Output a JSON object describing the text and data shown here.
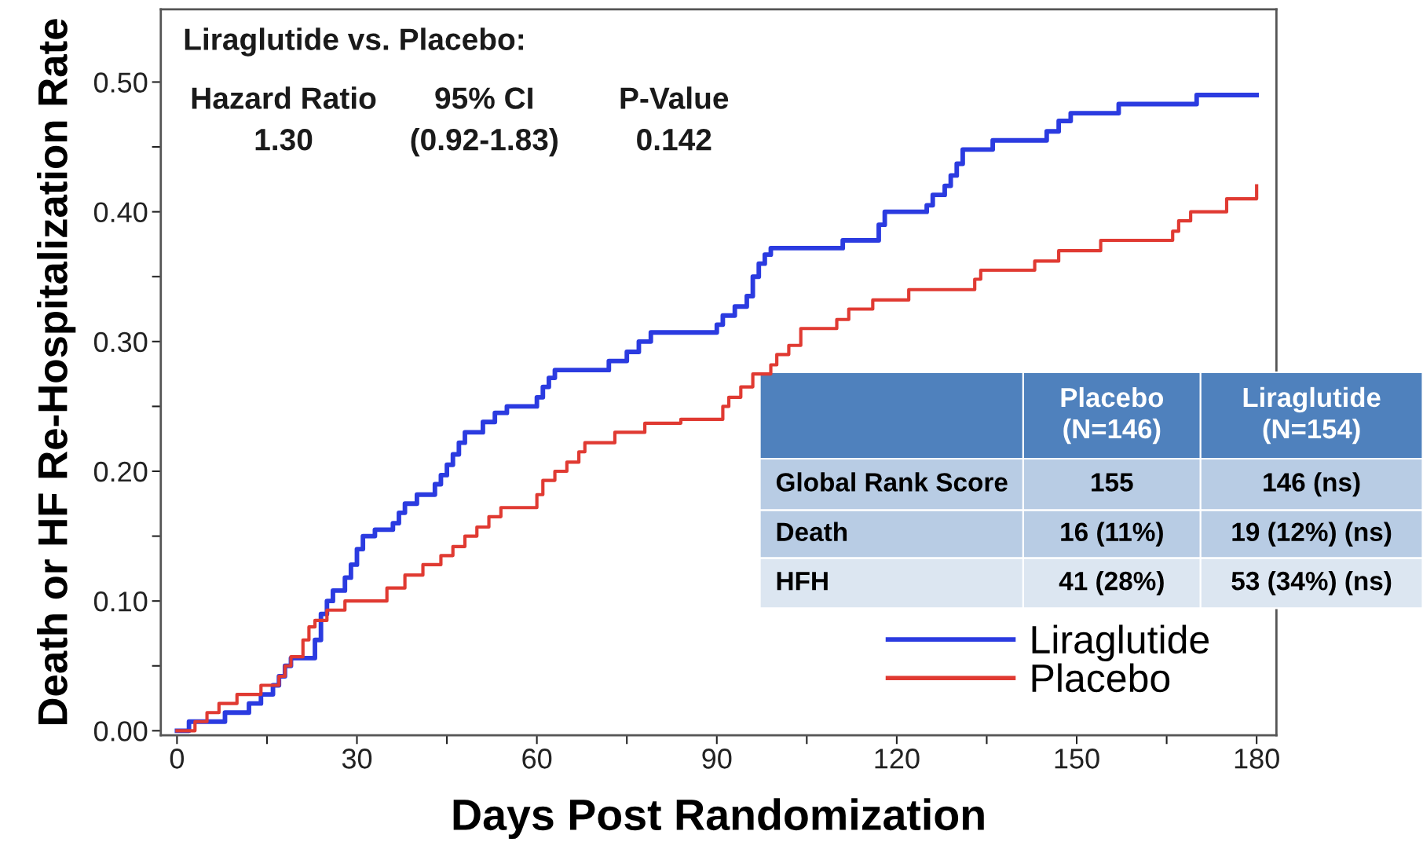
{
  "chart_data": {
    "type": "step",
    "xlabel": "Days Post Randomization",
    "ylabel": "Death or HF Re-Hospitalization Rate",
    "xlim": [
      -2.7,
      183.3
    ],
    "ylim": [
      -0.0035,
      0.556
    ],
    "xticks": [
      0,
      {
        "value": 15,
        "label": null
      },
      30,
      {
        "value": 45,
        "label": null
      },
      60,
      {
        "value": 75,
        "label": null
      },
      90,
      {
        "value": 105,
        "label": null
      },
      120,
      {
        "value": 135,
        "label": null
      },
      150,
      {
        "value": 165,
        "label": null
      },
      180
    ],
    "yticks": [
      "0.00",
      {
        "value": 0.05,
        "label": null
      },
      {
        "value": 0.1,
        "label": "0.10"
      },
      {
        "value": 0.15,
        "label": null
      },
      {
        "value": 0.2,
        "label": "0.20"
      },
      {
        "value": 0.25,
        "label": null
      },
      {
        "value": 0.3,
        "label": "0.30"
      },
      {
        "value": 0.35,
        "label": null
      },
      {
        "value": 0.4,
        "label": "0.40"
      },
      {
        "value": 0.45,
        "label": null
      },
      {
        "value": 0.5,
        "label": "0.50"
      }
    ],
    "grid": false,
    "legend": "bottom right",
    "series": [
      {
        "name": "Liraglutide",
        "color": "#2b3be0",
        "x": [
          0,
          2,
          8,
          12,
          14,
          16,
          17,
          18,
          19,
          22,
          23,
          24,
          25,
          26,
          28,
          29,
          30,
          31,
          33,
          36,
          37,
          38,
          40,
          43,
          44,
          45,
          46,
          47,
          48,
          51,
          53,
          55,
          60,
          61,
          62,
          63,
          72,
          75,
          77,
          79,
          90,
          91,
          93,
          95,
          96,
          97,
          98,
          99,
          111,
          117,
          118,
          125,
          126,
          128,
          129,
          130,
          131,
          136,
          145,
          147,
          149,
          157,
          170,
          180
        ],
        "values": [
          0,
          0.007,
          0.014,
          0.021,
          0.028,
          0.035,
          0.042,
          0.05,
          0.056,
          0.056,
          0.07,
          0.09,
          0.1,
          0.108,
          0.118,
          0.128,
          0.14,
          0.15,
          0.155,
          0.16,
          0.168,
          0.175,
          0.182,
          0.19,
          0.197,
          0.205,
          0.213,
          0.222,
          0.23,
          0.238,
          0.245,
          0.25,
          0.257,
          0.265,
          0.272,
          0.278,
          0.285,
          0.292,
          0.3,
          0.307,
          0.313,
          0.32,
          0.327,
          0.335,
          0.35,
          0.36,
          0.367,
          0.372,
          0.378,
          0.39,
          0.4,
          0.405,
          0.413,
          0.42,
          0.428,
          0.437,
          0.448,
          0.455,
          0.462,
          0.47,
          0.476,
          0.483,
          0.49,
          0.49
        ]
      },
      {
        "name": "Placebo",
        "color": "#e03a32",
        "x": [
          0,
          3,
          5,
          7,
          10,
          14,
          17,
          18,
          19,
          21,
          22,
          23,
          25,
          28,
          35,
          38,
          41,
          44,
          46,
          48,
          50,
          52,
          54,
          60,
          61,
          63,
          65,
          67,
          68,
          73,
          78,
          84,
          91,
          92,
          94,
          96,
          99,
          100,
          102,
          104,
          110,
          112,
          116,
          122,
          133,
          134,
          143,
          147,
          154,
          166,
          167,
          169,
          175,
          180,
          180
        ],
        "values": [
          0,
          0.007,
          0.014,
          0.021,
          0.028,
          0.035,
          0.042,
          0.05,
          0.057,
          0.07,
          0.08,
          0.085,
          0.093,
          0.1,
          0.11,
          0.12,
          0.128,
          0.135,
          0.142,
          0.15,
          0.157,
          0.165,
          0.172,
          0.182,
          0.193,
          0.2,
          0.207,
          0.215,
          0.222,
          0.23,
          0.237,
          0.24,
          0.25,
          0.257,
          0.265,
          0.275,
          0.282,
          0.29,
          0.297,
          0.31,
          0.317,
          0.325,
          0.332,
          0.34,
          0.348,
          0.355,
          0.362,
          0.37,
          0.378,
          0.385,
          0.393,
          0.4,
          0.41,
          0.41,
          0.42
        ]
      }
    ],
    "annotations": [
      "Liraglutide vs. Placebo:",
      "Hazard Ratio",
      "1.30",
      "95% CI",
      "(0.92-1.83)",
      "P-Value",
      "0.142",
      "Placebo\n(N=146)",
      "Liraglutide\n(N=154)",
      "Global Rank Score",
      "155",
      "146 (ns)",
      "Death",
      "16 (11%)",
      "19 (12%) (ns)",
      "HFH",
      "41 (28%)",
      "53 (34%) (ns)"
    ]
  }
}
